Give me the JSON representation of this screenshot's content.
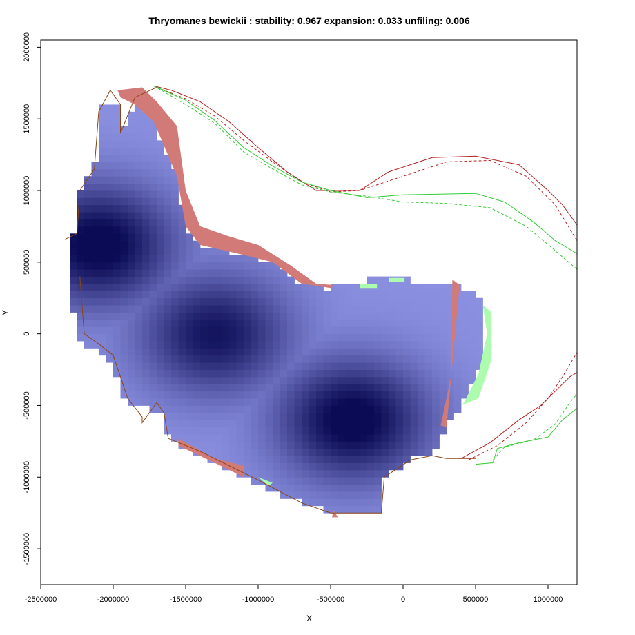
{
  "chart_data": {
    "type": "heatmap",
    "title": "Thryomanes bewickii : stability: 0.967 expansion: 0.033 unfiling: 0.006",
    "xlabel": "X",
    "ylabel": "Y",
    "xlim": [
      -2500000,
      1200000
    ],
    "ylim": [
      -1750000,
      2050000
    ],
    "x_ticks": [
      -2500000,
      -2000000,
      -1500000,
      -1000000,
      -500000,
      0,
      500000,
      1000000
    ],
    "y_ticks": [
      -1500000,
      -1000000,
      -500000,
      0,
      500000,
      1000000,
      1500000,
      2000000
    ],
    "x_tick_labels": [
      "-2500000",
      "-2000000",
      "-1500000",
      "-1000000",
      "-500000",
      "0",
      "500000",
      "1000000"
    ],
    "y_tick_labels": [
      "-1500000",
      "-1000000",
      "-500000",
      "0",
      "500000",
      "1000000",
      "1500000",
      "2000000"
    ],
    "grid": false,
    "metrics": {
      "stability": 0.967,
      "expansion": 0.033,
      "unfiling": 0.006
    },
    "colors": {
      "density_low": "#8a8fe0",
      "density_high": "#0b0b55",
      "unfilling": "#d27a78",
      "expansion": "#adfbad",
      "outline_dark": "#8b4513",
      "outline_red": "#b22222",
      "outline_green": "#33cc33"
    },
    "density_centers": [
      {
        "x": -2100000,
        "y": 620000,
        "w": 1.0
      },
      {
        "x": -1300000,
        "y": 0,
        "w": 0.85
      },
      {
        "x": -350000,
        "y": -600000,
        "w": 1.0
      }
    ],
    "main_region": [
      [
        -2320000,
        660000
      ],
      [
        -2230000,
        700000
      ],
      [
        -2230000,
        1000000
      ],
      [
        -2130000,
        1150000
      ],
      [
        -2100000,
        1550000
      ],
      [
        -2050000,
        1620000
      ],
      [
        -1950000,
        1580000
      ],
      [
        -1950000,
        1400000
      ],
      [
        -1850000,
        1600000
      ],
      [
        -1720000,
        1480000
      ],
      [
        -1560000,
        1100000
      ],
      [
        -1500000,
        750000
      ],
      [
        -1400000,
        620000
      ],
      [
        -1100000,
        550000
      ],
      [
        -900000,
        500000
      ],
      [
        -700000,
        350000
      ],
      [
        -500000,
        320000
      ],
      [
        -200000,
        380000
      ],
      [
        350000,
        370000
      ],
      [
        520000,
        250000
      ],
      [
        580000,
        0
      ],
      [
        520000,
        -280000
      ],
      [
        420000,
        -480000
      ],
      [
        300000,
        -650000
      ],
      [
        200000,
        -850000
      ],
      [
        50000,
        -880000
      ],
      [
        -130000,
        -1000000
      ],
      [
        -150000,
        -1250000
      ],
      [
        -480000,
        -1250000
      ],
      [
        -800000,
        -1150000
      ],
      [
        -1100000,
        -1000000
      ],
      [
        -1300000,
        -900000
      ],
      [
        -1620000,
        -730000
      ],
      [
        -1650000,
        -550000
      ],
      [
        -1900000,
        -480000
      ],
      [
        -2050000,
        -150000
      ],
      [
        -2250000,
        -50000
      ],
      [
        -2300000,
        350000
      ]
    ],
    "unfilling_regions": [
      [
        [
          -1970000,
          1700000
        ],
        [
          -1800000,
          1720000
        ],
        [
          -1700000,
          1620000
        ],
        [
          -1560000,
          1450000
        ],
        [
          -1500000,
          1000000
        ],
        [
          -1400000,
          750000
        ],
        [
          -1200000,
          680000
        ],
        [
          -1000000,
          620000
        ],
        [
          -780000,
          480000
        ],
        [
          -600000,
          350000
        ],
        [
          -480000,
          340000
        ],
        [
          -500000,
          320000
        ],
        [
          -700000,
          350000
        ],
        [
          -900000,
          500000
        ],
        [
          -1100000,
          550000
        ],
        [
          -1400000,
          620000
        ],
        [
          -1500000,
          750000
        ],
        [
          -1560000,
          1100000
        ],
        [
          -1720000,
          1480000
        ],
        [
          -1850000,
          1600000
        ],
        [
          -1950000,
          1650000
        ]
      ],
      [
        [
          340000,
          380000
        ],
        [
          390000,
          340000
        ],
        [
          300000,
          -650000
        ],
        [
          260000,
          -640000
        ],
        [
          330000,
          -300000
        ]
      ],
      [
        [
          -1550000,
          -730000
        ],
        [
          -1300000,
          -870000
        ],
        [
          -1100000,
          -920000
        ],
        [
          -1100000,
          -1000000
        ],
        [
          -1300000,
          -900000
        ],
        [
          -1550000,
          -780000
        ]
      ],
      [
        [
          -480000,
          -1230000
        ],
        [
          -450000,
          -1280000
        ],
        [
          -490000,
          -1280000
        ]
      ]
    ],
    "expansion_regions": [
      [
        [
          550000,
          200000
        ],
        [
          610000,
          150000
        ],
        [
          610000,
          -180000
        ],
        [
          520000,
          -450000
        ],
        [
          400000,
          -500000
        ],
        [
          420000,
          -480000
        ],
        [
          520000,
          -280000
        ],
        [
          580000,
          0
        ]
      ],
      [
        [
          -300000,
          350000
        ],
        [
          -180000,
          350000
        ],
        [
          -180000,
          320000
        ],
        [
          -300000,
          320000
        ]
      ],
      [
        [
          -100000,
          390000
        ],
        [
          10000,
          390000
        ],
        [
          10000,
          360000
        ],
        [
          -100000,
          360000
        ]
      ],
      [
        [
          -1000000,
          -1000000
        ],
        [
          -900000,
          -1040000
        ],
        [
          -930000,
          -1060000
        ]
      ]
    ],
    "outlines": [
      {
        "name": "",
        "color": "#8b4513",
        "dash": false,
        "points": [
          [
            -2330000,
            660000
          ],
          [
            -2250000,
            700000
          ],
          [
            -2230000,
            1000000
          ],
          [
            -2130000,
            1150000
          ],
          [
            -2100000,
            1550000
          ],
          [
            -2020000,
            1700000
          ],
          [
            -1950000,
            1600000
          ],
          [
            -1950000,
            1400000
          ],
          [
            -1850000,
            1650000
          ],
          [
            -1700000,
            1720000
          ]
        ]
      },
      {
        "name": "",
        "color": "#8b4513",
        "dash": false,
        "points": [
          [
            -2230000,
            400000
          ],
          [
            -2200000,
            0
          ],
          [
            -2100000,
            -70000
          ],
          [
            -2000000,
            -150000
          ],
          [
            -1900000,
            -450000
          ],
          [
            -1800000,
            -580000
          ],
          [
            -1800000,
            -620000
          ],
          [
            -1700000,
            -480000
          ],
          [
            -1650000,
            -550000
          ],
          [
            -1620000,
            -730000
          ],
          [
            -1400000,
            -820000
          ],
          [
            -1200000,
            -920000
          ],
          [
            -1000000,
            -1020000
          ],
          [
            -700000,
            -1180000
          ],
          [
            -500000,
            -1250000
          ],
          [
            -150000,
            -1250000
          ],
          [
            -130000,
            -1000000
          ],
          [
            50000,
            -880000
          ],
          [
            200000,
            -850000
          ],
          [
            300000,
            -870000
          ],
          [
            500000,
            -870000
          ]
        ]
      },
      {
        "name": "",
        "color": "#b22222",
        "dash": false,
        "points": [
          [
            -1720000,
            1730000
          ],
          [
            -1600000,
            1700000
          ],
          [
            -1400000,
            1620000
          ],
          [
            -1200000,
            1480000
          ],
          [
            -1000000,
            1300000
          ],
          [
            -800000,
            1130000
          ],
          [
            -600000,
            1000000
          ],
          [
            -300000,
            1000000
          ],
          [
            -100000,
            1130000
          ],
          [
            200000,
            1230000
          ],
          [
            500000,
            1240000
          ],
          [
            800000,
            1180000
          ],
          [
            1000000,
            1000000
          ],
          [
            1100000,
            900000
          ],
          [
            1200000,
            760000
          ]
        ]
      },
      {
        "name": "",
        "color": "#b22222",
        "dash": true,
        "points": [
          [
            -1700000,
            1720000
          ],
          [
            -1500000,
            1640000
          ],
          [
            -1300000,
            1520000
          ],
          [
            -1100000,
            1350000
          ],
          [
            -900000,
            1200000
          ],
          [
            -700000,
            1060000
          ],
          [
            -500000,
            990000
          ],
          [
            -300000,
            1000000
          ],
          [
            0,
            1100000
          ],
          [
            300000,
            1200000
          ],
          [
            600000,
            1210000
          ],
          [
            850000,
            1100000
          ],
          [
            1050000,
            900000
          ],
          [
            1200000,
            650000
          ]
        ]
      },
      {
        "name": "",
        "color": "#33cc33",
        "dash": false,
        "points": [
          [
            -1720000,
            1730000
          ],
          [
            -1500000,
            1630000
          ],
          [
            -1300000,
            1490000
          ],
          [
            -1100000,
            1300000
          ],
          [
            -900000,
            1170000
          ],
          [
            -700000,
            1060000
          ],
          [
            -500000,
            1000000
          ],
          [
            -250000,
            950000
          ],
          [
            0,
            970000
          ],
          [
            500000,
            980000
          ],
          [
            700000,
            920000
          ],
          [
            900000,
            780000
          ],
          [
            1050000,
            650000
          ],
          [
            1200000,
            560000
          ]
        ]
      },
      {
        "name": "",
        "color": "#33cc33",
        "dash": true,
        "points": [
          [
            -1720000,
            1730000
          ],
          [
            -1500000,
            1600000
          ],
          [
            -1300000,
            1470000
          ],
          [
            -1100000,
            1270000
          ],
          [
            -900000,
            1150000
          ],
          [
            -700000,
            1040000
          ],
          [
            -500000,
            990000
          ],
          [
            -250000,
            960000
          ],
          [
            0,
            920000
          ],
          [
            300000,
            910000
          ],
          [
            600000,
            880000
          ],
          [
            850000,
            750000
          ],
          [
            1050000,
            580000
          ],
          [
            1200000,
            450000
          ]
        ]
      },
      {
        "name": "",
        "color": "#b22222",
        "dash": false,
        "points": [
          [
            400000,
            -870000
          ],
          [
            600000,
            -760000
          ],
          [
            800000,
            -600000
          ],
          [
            950000,
            -500000
          ],
          [
            1050000,
            -400000
          ],
          [
            1150000,
            -300000
          ],
          [
            1200000,
            -270000
          ]
        ]
      },
      {
        "name": "",
        "color": "#b22222",
        "dash": true,
        "points": [
          [
            450000,
            -880000
          ],
          [
            650000,
            -780000
          ],
          [
            850000,
            -620000
          ],
          [
            1000000,
            -450000
          ],
          [
            1100000,
            -300000
          ],
          [
            1200000,
            -130000
          ]
        ]
      },
      {
        "name": "",
        "color": "#33cc33",
        "dash": false,
        "points": [
          [
            500000,
            -910000
          ],
          [
            620000,
            -900000
          ],
          [
            650000,
            -800000
          ],
          [
            800000,
            -760000
          ],
          [
            1000000,
            -720000
          ],
          [
            1100000,
            -600000
          ],
          [
            1200000,
            -520000
          ]
        ]
      },
      {
        "name": "",
        "color": "#33cc33",
        "dash": true,
        "points": [
          [
            620000,
            -880000
          ],
          [
            700000,
            -790000
          ],
          [
            900000,
            -740000
          ],
          [
            1050000,
            -630000
          ],
          [
            1150000,
            -480000
          ],
          [
            1200000,
            -420000
          ]
        ]
      }
    ]
  }
}
